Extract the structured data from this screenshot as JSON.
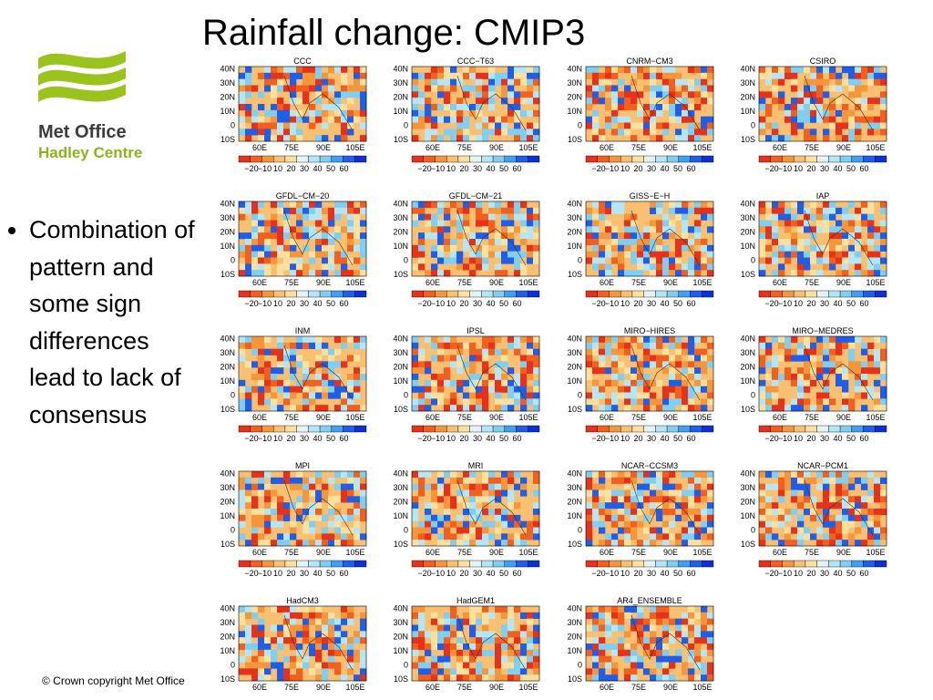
{
  "header": {
    "title": "Rainfall change: CMIP3"
  },
  "logo": {
    "line1": "Met Office",
    "line2": "Hadley Centre"
  },
  "bullet": {
    "text": "Combination of pattern and some sign differences lead to lack of consensus"
  },
  "footer": {
    "text": "© Crown copyright   Met Office"
  },
  "map_axes": {
    "lat_labels": [
      "40N",
      "30N",
      "20N",
      "10N",
      "0",
      "10S"
    ],
    "lon_labels": [
      "60E",
      "75E",
      "90E",
      "105E"
    ],
    "colorbar_labels": [
      "−20",
      "−10",
      "10",
      "20",
      "30",
      "40",
      "50",
      "60"
    ]
  },
  "panels": [
    {
      "label": "CCC"
    },
    {
      "label": "CCC−T63"
    },
    {
      "label": "CNRM−CM3"
    },
    {
      "label": "CSIRO"
    },
    {
      "label": "GFDL−CM−20"
    },
    {
      "label": "GFDL−CM−21"
    },
    {
      "label": "GISS−E−H"
    },
    {
      "label": "IAP"
    },
    {
      "label": "INM"
    },
    {
      "label": "IPSL"
    },
    {
      "label": "MIRO−HIRES"
    },
    {
      "label": "MIRO−MEDRES"
    },
    {
      "label": "MPI"
    },
    {
      "label": "MRI"
    },
    {
      "label": "NCAR−CCSM3"
    },
    {
      "label": "NCAR−PCM1"
    },
    {
      "label": "HadCM3"
    },
    {
      "label": "HadGEM1"
    },
    {
      "label": "AR4_ENSEMBLE"
    }
  ]
}
